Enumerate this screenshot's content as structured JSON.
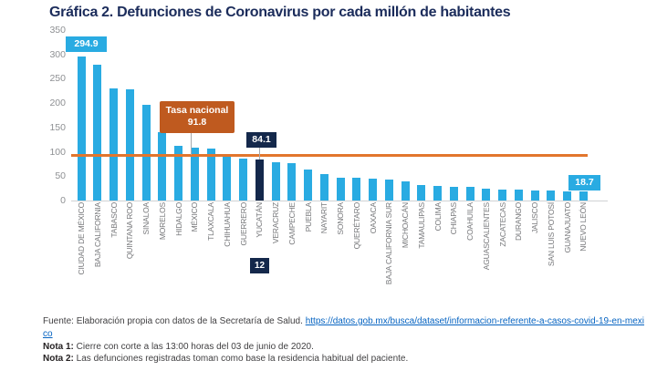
{
  "page_title": "Gráfica 2. Defunciones de Coronavirus por cada millón de habitantes",
  "chart_data": {
    "type": "bar",
    "title": "Gráfica 2. Defunciones de Coronavirus por cada millón de habitantes",
    "xlabel": "",
    "ylabel": "",
    "ylim": [
      0,
      350
    ],
    "yticks": [
      0,
      50,
      100,
      150,
      200,
      250,
      300,
      350
    ],
    "grid": false,
    "bar_color": "#29abe2",
    "highlight_bar_color": "#14284b",
    "categories": [
      "CIUDAD DE MÉXICO",
      "BAJA CALIFORNIA",
      "TABASCO",
      "QUINTANA ROO",
      "SINALOA",
      "MORELOS",
      "HIDALGO",
      "MÉXICO",
      "TLAXCALA",
      "CHIHUAHUA",
      "GUERRERO",
      "YUCATÁN",
      "VERACRUZ",
      "CAMPECHE",
      "PUEBLA",
      "NAYARIT",
      "SONORA",
      "QUERÉTARO",
      "OAXACA",
      "BAJA CALIFORNIA SUR",
      "MICHOACÁN",
      "TAMAULIPAS",
      "COLIMA",
      "CHIAPAS",
      "COAHUILA",
      "AGUASCALIENTES",
      "ZACATECAS",
      "DURANGO",
      "JALISCO",
      "SAN LUIS POTOSÍ",
      "GUANAJUATO",
      "NUEVO LEÓN"
    ],
    "values": [
      294.9,
      278,
      231,
      228,
      197,
      140,
      113,
      109,
      107,
      92,
      86,
      84.1,
      78,
      76,
      63,
      54,
      47,
      46,
      45,
      44,
      39,
      31,
      30,
      29,
      28,
      24,
      23,
      22,
      21,
      20,
      19.5,
      18.7
    ],
    "highlight": {
      "index": 11,
      "state": "YUCATÁN",
      "label": "84.1",
      "rank_badge": "12"
    },
    "callouts": {
      "first": "294.9",
      "last": "18.7"
    },
    "national_rate": {
      "label": "Tasa nacional",
      "value": 91.8,
      "value_label": "91.8",
      "line_color": "#e2762d",
      "box_color": "#bf5a1f"
    }
  },
  "footer": {
    "fuente_text": "Fuente: Elaboración propia con datos de la Secretaría de Salud. ",
    "fuente_link": "https://datos.gob.mx/busca/dataset/informacion-referente-a-casos-covid-19-en-mexico",
    "nota1_label": "Nota 1:",
    "nota1_text": " Cierre con corte a las 13:00 horas del 03 de junio de 2020.",
    "nota2_label": "Nota 2:",
    "nota2_text": " Las defunciones registradas toman como base la residencia habitual del paciente."
  }
}
